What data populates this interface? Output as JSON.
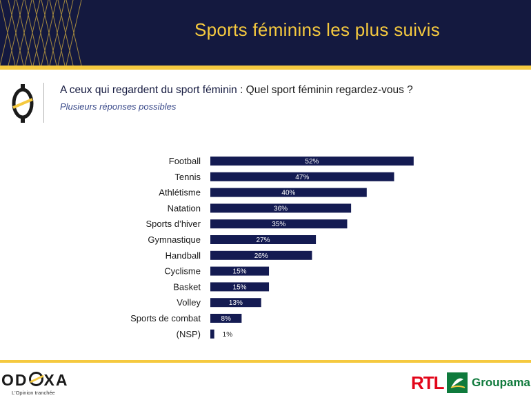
{
  "header": {
    "title": "Sports féminins les plus suivis"
  },
  "question": {
    "lead": "A ceux qui regardent du sport féminin",
    "text": " : Quel sport féminin regardez-vous ?",
    "note": "Plusieurs réponses possibles"
  },
  "colors": {
    "navy": "#14193f",
    "gold": "#f5c93f",
    "bar": "#141b52",
    "rtl_red": "#e2061a",
    "groupama_green": "#0f7a3c"
  },
  "chart_data": {
    "type": "bar",
    "orientation": "horizontal",
    "categories": [
      "Football",
      "Tennis",
      "Athlétisme",
      "Natation",
      "Sports d’hiver",
      "Gymnastique",
      "Handball",
      "Cyclisme",
      "Basket",
      "Volley",
      "Sports de combat",
      "(NSP)"
    ],
    "values": [
      52,
      47,
      40,
      36,
      35,
      27,
      26,
      15,
      15,
      13,
      8,
      1
    ],
    "labels": [
      "52%",
      "47%",
      "40%",
      "36%",
      "35%",
      "27%",
      "26%",
      "15%",
      "15%",
      "13%",
      "8%",
      "1%"
    ],
    "xlim": [
      0,
      100
    ],
    "grid": false
  },
  "footer": {
    "brand": "ODOXA",
    "brand_parts": [
      "OD",
      "XA"
    ],
    "tagline": "L'Opinion tranchée",
    "partner1": "RTL",
    "partner2": "Groupama"
  }
}
